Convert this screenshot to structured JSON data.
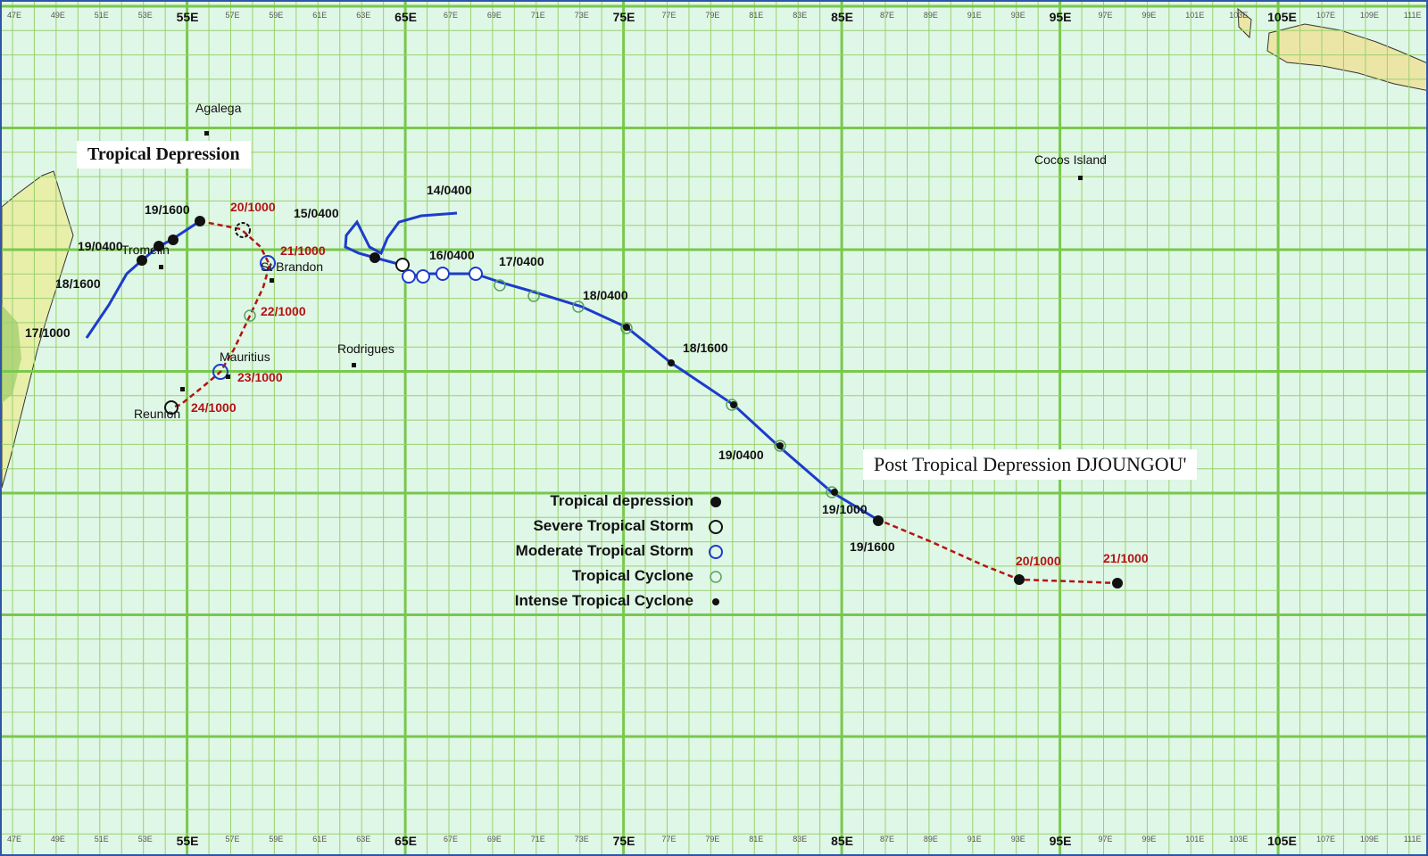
{
  "map": {
    "title_left": "Tropical Depression",
    "title_right": "Post Tropical Depression DJOUNGOU'",
    "lon_major_labels": [
      "55E",
      "65E",
      "75E",
      "85E",
      "95E",
      "105E"
    ],
    "lon_minor_labels_top": [
      "47E",
      "49E",
      "51E",
      "53E",
      "57E",
      "59E",
      "61E",
      "63E",
      "67E",
      "69E",
      "71E",
      "73E",
      "77E",
      "79E",
      "81E",
      "83E",
      "87E",
      "89E",
      "91E",
      "93E",
      "97E",
      "99E",
      "101E",
      "103E",
      "107E",
      "109E",
      "111E"
    ],
    "places": {
      "agalega": "Agalega",
      "cocos": "Cocos Island",
      "tromelin": "Tromelin",
      "brandon": "St Brandon",
      "rodrigues": "Rodrigues",
      "mauritius": "Mauritius",
      "reunion": "Reunion"
    },
    "left_track_labels": {
      "l_17_1000": "17/1000",
      "l_18_1600": "18/1600",
      "l_19_0400": "19/0400",
      "l_19_1600": "19/1600",
      "l_20_1000": "20/1000",
      "l_21_1000": "21/1000",
      "l_22_1000": "22/1000",
      "l_23_1000": "23/1000",
      "l_24_1000": "24/1000"
    },
    "right_track_labels": {
      "r_14_0400": "14/0400",
      "r_15_0400": "15/0400",
      "r_16_0400": "16/0400",
      "r_17_0400": "17/0400",
      "r_18_0400": "18/0400",
      "r_18_1600": "18/1600",
      "r_19_0400": "19/0400",
      "r_19_1000": "19/1000",
      "r_19_1600": "19/1600",
      "r_20_1000": "20/1000",
      "r_21_1000": "21/1000"
    },
    "legend": [
      {
        "label": "Tropical depression",
        "symbol": "filled-circle-icon"
      },
      {
        "label": "Severe Tropical Storm",
        "symbol": "open-black-circle-icon"
      },
      {
        "label": "Moderate Tropical Storm",
        "symbol": "open-blue-circle-icon"
      },
      {
        "label": "Tropical Cyclone",
        "symbol": "cyclone-icon"
      },
      {
        "label": "Intense Tropical Cyclone",
        "symbol": "intense-cyclone-icon"
      }
    ],
    "colors": {
      "ocean": "#dff7e6",
      "grid": "#9ad06f",
      "track_active": "#1c3ccc",
      "track_post": "#b31313",
      "land": "#e6efaa"
    }
  }
}
